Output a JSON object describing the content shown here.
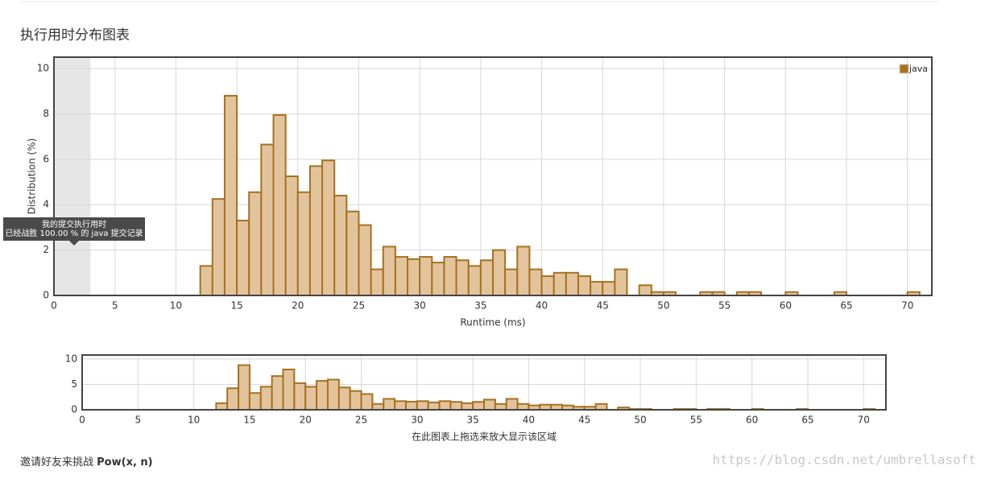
{
  "header": {
    "title": "执行用时分布图表"
  },
  "tooltip": {
    "lines": [
      "我的提交执行用时",
      "已经战胜 100.00 % 的 java 提交记录"
    ]
  },
  "footer": {
    "text": "邀请好友来挑战",
    "problem": "Pow(x, n)"
  },
  "watermark": "https://blog.csdn.net/umbrellasoft",
  "chart_data": [
    {
      "type": "histogram",
      "xlabel": "Runtime (ms)",
      "ylabel": "Distribution (%)",
      "bins": [
        12,
        13,
        14,
        15,
        16,
        17,
        18,
        19,
        20,
        21,
        22,
        23,
        24,
        25,
        26,
        27,
        28,
        29,
        30,
        31,
        32,
        33,
        34,
        35,
        36,
        37,
        38,
        39,
        40,
        41,
        42,
        43,
        44,
        45,
        46,
        47,
        48,
        49,
        50,
        51,
        52,
        53,
        54,
        55,
        56,
        57,
        58,
        59,
        60,
        61,
        62,
        63,
        64,
        65,
        66,
        67,
        68,
        69,
        70,
        71
      ],
      "series": [
        {
          "name": "java",
          "color": "#a8701f",
          "fill": "#e2c49c",
          "values": [
            1.3,
            4.25,
            8.8,
            3.3,
            4.55,
            6.65,
            7.95,
            5.25,
            4.55,
            5.7,
            5.95,
            4.4,
            3.7,
            3.1,
            1.15,
            2.15,
            1.7,
            1.6,
            1.7,
            1.45,
            1.7,
            1.55,
            1.3,
            1.55,
            2.0,
            1.15,
            2.15,
            1.15,
            0.85,
            1.0,
            1.0,
            0.85,
            0.6,
            0.6,
            1.15,
            0,
            0.45,
            0.15,
            0.15,
            0,
            0,
            0.15,
            0.15,
            0,
            0.15,
            0.15,
            0,
            0,
            0.15,
            0,
            0,
            0,
            0.15,
            0,
            0,
            0,
            0,
            0,
            0.15
          ]
        }
      ],
      "highlight": [
        0,
        3
      ],
      "xlim": [
        0,
        72
      ],
      "ylim": [
        0,
        10.5
      ],
      "xticks": [
        0,
        5,
        10,
        15,
        20,
        25,
        30,
        35,
        40,
        45,
        50,
        55,
        60,
        65,
        70
      ],
      "yticks": [
        0,
        2,
        4,
        6,
        8,
        10
      ],
      "grid": true,
      "legend": "top-right"
    },
    {
      "type": "histogram",
      "xlabel": "在此图表上拖选来放大显示该区域",
      "bins": [
        12,
        13,
        14,
        15,
        16,
        17,
        18,
        19,
        20,
        21,
        22,
        23,
        24,
        25,
        26,
        27,
        28,
        29,
        30,
        31,
        32,
        33,
        34,
        35,
        36,
        37,
        38,
        39,
        40,
        41,
        42,
        43,
        44,
        45,
        46,
        47,
        48,
        49,
        50,
        51,
        52,
        53,
        54,
        55,
        56,
        57,
        58,
        59,
        60,
        61,
        62,
        63,
        64,
        65,
        66,
        67,
        68,
        69,
        70,
        71
      ],
      "color": "#a8701f",
      "fill": "#e2c49c",
      "values": [
        1.3,
        4.25,
        8.8,
        3.3,
        4.55,
        6.65,
        7.95,
        5.25,
        4.55,
        5.7,
        5.95,
        4.4,
        3.7,
        3.1,
        1.15,
        2.15,
        1.7,
        1.6,
        1.7,
        1.45,
        1.7,
        1.55,
        1.3,
        1.55,
        2.0,
        1.15,
        2.15,
        1.15,
        0.85,
        1.0,
        1.0,
        0.85,
        0.6,
        0.6,
        1.15,
        0,
        0.45,
        0.15,
        0.15,
        0,
        0,
        0.15,
        0.15,
        0,
        0.15,
        0.15,
        0,
        0,
        0.15,
        0,
        0,
        0,
        0.15,
        0,
        0,
        0,
        0,
        0,
        0.15
      ],
      "xlim": [
        0,
        72
      ],
      "ylim": [
        0,
        10.8
      ],
      "xticks": [
        0,
        5,
        10,
        15,
        20,
        25,
        30,
        35,
        40,
        45,
        50,
        55,
        60,
        65,
        70
      ],
      "yticks": [
        0,
        5,
        10
      ],
      "grid": true
    }
  ]
}
